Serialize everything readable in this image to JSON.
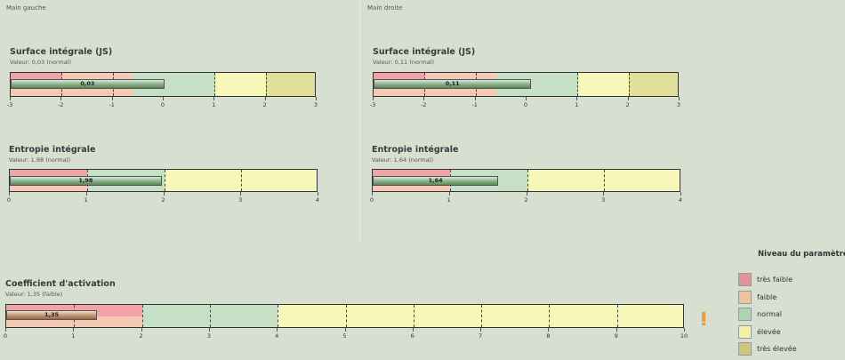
{
  "panels": {
    "left": "Main gauche",
    "right": "Main droite"
  },
  "gauges": [
    {
      "id": "surface-left",
      "title": "Surface intégrale (JS)",
      "value_text": "Valeur: 0,03 (normal)",
      "value": 0.03,
      "value_label": "0,03",
      "level": "normal",
      "min": -3,
      "max": 3,
      "ticks": [
        "-3",
        "-2",
        "-1",
        "0",
        "1",
        "2",
        "3"
      ],
      "zones": [
        {
          "from": -3,
          "to": -2,
          "type": "split"
        },
        {
          "from": -2,
          "to": -0.6,
          "type": "low"
        },
        {
          "from": -0.6,
          "to": 1,
          "type": "normal"
        },
        {
          "from": 1,
          "to": 2,
          "type": "high"
        },
        {
          "from": 2,
          "to": 3,
          "type": "very-high"
        }
      ],
      "grid": [
        -2,
        -1,
        1,
        2
      ]
    },
    {
      "id": "surface-right",
      "title": "Surface intégrale (JS)",
      "value_text": "Valeur: 0,11 (normal)",
      "value": 0.11,
      "value_label": "0,11",
      "level": "normal",
      "min": -3,
      "max": 3,
      "ticks": [
        "-3",
        "-2",
        "-1",
        "0",
        "1",
        "2",
        "3"
      ],
      "zones": [
        {
          "from": -3,
          "to": -2,
          "type": "split"
        },
        {
          "from": -2,
          "to": -0.6,
          "type": "low"
        },
        {
          "from": -0.6,
          "to": 1,
          "type": "normal"
        },
        {
          "from": 1,
          "to": 2,
          "type": "high"
        },
        {
          "from": 2,
          "to": 3,
          "type": "very-high"
        }
      ],
      "grid": [
        -2,
        -1,
        1,
        2
      ]
    },
    {
      "id": "entropy-left",
      "title": "Entropie intégrale",
      "value_text": "Valeur: 1,98 (normal)",
      "value": 1.98,
      "value_label": "1,98",
      "level": "normal",
      "min": 0,
      "max": 4,
      "ticks": [
        "0",
        "1",
        "2",
        "3",
        "4"
      ],
      "zones": [
        {
          "from": 0,
          "to": 1,
          "type": "split"
        },
        {
          "from": 1,
          "to": 2,
          "type": "normal"
        },
        {
          "from": 2,
          "to": 4,
          "type": "high"
        }
      ],
      "grid": [
        1,
        3
      ]
    },
    {
      "id": "entropy-right",
      "title": "Entropie intégrale",
      "value_text": "Valeur: 1,64 (normal)",
      "value": 1.64,
      "value_label": "1,64",
      "level": "normal",
      "min": 0,
      "max": 4,
      "ticks": [
        "0",
        "1",
        "2",
        "3",
        "4"
      ],
      "zones": [
        {
          "from": 0,
          "to": 1,
          "type": "split"
        },
        {
          "from": 1,
          "to": 2,
          "type": "normal"
        },
        {
          "from": 2,
          "to": 4,
          "type": "high"
        }
      ],
      "grid": [
        1,
        3
      ]
    },
    {
      "id": "activation",
      "title": "Coefficient d'activation",
      "value_text": "Valeur: 1,35 (faible)",
      "value": 1.35,
      "value_label": "1,35",
      "level": "faible",
      "min": 0,
      "max": 10,
      "ticks": [
        "0",
        "1",
        "2",
        "3",
        "4",
        "5",
        "6",
        "7",
        "8",
        "9",
        "10"
      ],
      "zones": [
        {
          "from": 0,
          "to": 2,
          "type": "split"
        },
        {
          "from": 2,
          "to": 4,
          "type": "normal"
        },
        {
          "from": 4,
          "to": 10,
          "type": "high"
        }
      ],
      "grid": [
        1,
        3,
        5,
        6,
        7,
        8,
        9
      ]
    }
  ],
  "legend": {
    "title": "Niveau du paramètre :",
    "items": [
      {
        "label": "très faible",
        "color": "#e0949a"
      },
      {
        "label": "faible",
        "color": "#efc39f"
      },
      {
        "label": "normal",
        "color": "#aed3b1"
      },
      {
        "label": "élevée",
        "color": "#f3f0a8"
      },
      {
        "label": "très élevée",
        "color": "#cdc67c"
      }
    ]
  }
}
